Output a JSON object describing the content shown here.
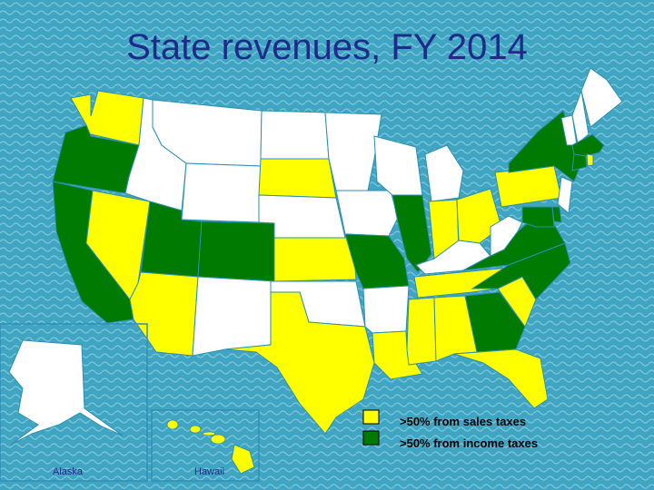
{
  "title": "State revenues, FY 2014",
  "colors": {
    "sales": "#ffff00",
    "income": "#007a00",
    "other": "#ffffff",
    "background": "#3fa5c2",
    "border": "#2b8fb0"
  },
  "legend": [
    {
      "category": "sales",
      "label": ">50% from sales taxes"
    },
    {
      "category": "income",
      "label": ">50% from income taxes"
    }
  ],
  "insets": {
    "alaska": "Alaska",
    "hawaii": "Hawaii"
  },
  "states": {
    "WA": "sales",
    "OR": "income",
    "CA": "income",
    "NV": "sales",
    "ID": "other",
    "MT": "other",
    "WY": "other",
    "UT": "income",
    "AZ": "sales",
    "CO": "income",
    "NM": "other",
    "ND": "other",
    "SD": "sales",
    "NE": "other",
    "KS": "sales",
    "OK": "other",
    "TX": "sales",
    "MN": "other",
    "IA": "other",
    "MO": "income",
    "AR": "other",
    "LA": "sales",
    "WI": "other",
    "IL": "income",
    "MI": "other",
    "IN": "sales",
    "OH": "sales",
    "KY": "other",
    "TN": "sales",
    "MS": "sales",
    "AL": "sales",
    "GA": "income",
    "FL": "sales",
    "SC": "sales",
    "NC": "income",
    "VA": "income",
    "WV": "other",
    "PA": "sales",
    "NY": "income",
    "VT": "other",
    "NH": "other",
    "ME": "other",
    "MA": "income",
    "CT": "income",
    "RI": "sales",
    "NJ": "other",
    "DE": "income",
    "MD": "income",
    "AK": "other",
    "HI": "sales"
  }
}
